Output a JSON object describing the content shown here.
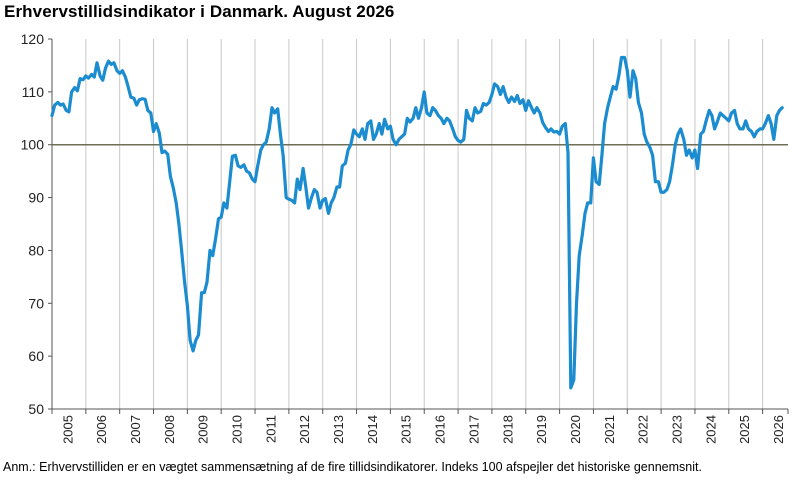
{
  "title": "Erhvervstillidsindikator i Danmark. August 2026",
  "note": "Anm.: Erhvervstilliden er en vægtet sammensætning af de fire tillidsindikatorer. Indeks 100 afspejler det historiske gennemsnit.",
  "colors": {
    "line": "#1b8ccf",
    "reference": "#6e6e57",
    "grid": "#c8c8c8",
    "axis": "#555555"
  },
  "chart_data": {
    "type": "line",
    "title": "Erhvervstillidsindikator i Danmark. August 2026",
    "xlabel": "",
    "ylabel": "",
    "ylim": [
      50,
      120
    ],
    "yticks": [
      50,
      60,
      70,
      80,
      90,
      100,
      110,
      120
    ],
    "xlim": [
      2005.0,
      2026.75
    ],
    "xticks": [
      "2005",
      "2006",
      "2007",
      "2008",
      "2009",
      "2010",
      "2011",
      "2012",
      "2013",
      "2014",
      "2015",
      "2016",
      "2017",
      "2018",
      "2019",
      "2020",
      "2021",
      "2022",
      "2023",
      "2024",
      "2025",
      "2026"
    ],
    "reference_line": 100,
    "grid": "vertical year separators",
    "legend": "none",
    "series": [
      {
        "x": [
          2005.0,
          2005.08,
          2005.17,
          2005.25,
          2005.33,
          2005.42,
          2005.5,
          2005.58,
          2005.67,
          2005.75,
          2005.83,
          2005.92,
          2006.0,
          2006.08,
          2006.17,
          2006.25,
          2006.33,
          2006.42,
          2006.5,
          2006.58,
          2006.67,
          2006.75,
          2006.83,
          2006.92,
          2007.0,
          2007.08,
          2007.17,
          2007.25,
          2007.33,
          2007.42,
          2007.5,
          2007.58,
          2007.67,
          2007.75,
          2007.83,
          2007.92,
          2008.0,
          2008.08,
          2008.17,
          2008.25,
          2008.33,
          2008.42,
          2008.5,
          2008.58,
          2008.67,
          2008.75,
          2008.83,
          2008.92,
          2009.0,
          2009.08,
          2009.17,
          2009.25,
          2009.33,
          2009.42,
          2009.5,
          2009.58,
          2009.67,
          2009.75,
          2009.83,
          2009.92,
          2010.0,
          2010.08,
          2010.17,
          2010.25,
          2010.33,
          2010.42,
          2010.5,
          2010.58,
          2010.67,
          2010.75,
          2010.83,
          2010.92,
          2011.0,
          2011.08,
          2011.17,
          2011.25,
          2011.33,
          2011.42,
          2011.5,
          2011.58,
          2011.67,
          2011.75,
          2011.83,
          2011.92,
          2012.0,
          2012.08,
          2012.17,
          2012.25,
          2012.33,
          2012.42,
          2012.5,
          2012.58,
          2012.67,
          2012.75,
          2012.83,
          2012.92,
          2013.0,
          2013.08,
          2013.17,
          2013.25,
          2013.33,
          2013.42,
          2013.5,
          2013.58,
          2013.67,
          2013.75,
          2013.83,
          2013.92,
          2014.0,
          2014.08,
          2014.17,
          2014.25,
          2014.33,
          2014.42,
          2014.5,
          2014.58,
          2014.67,
          2014.75,
          2014.83,
          2014.92,
          2015.0,
          2015.08,
          2015.17,
          2015.25,
          2015.33,
          2015.42,
          2015.5,
          2015.58,
          2015.67,
          2015.75,
          2015.83,
          2015.92,
          2016.0,
          2016.08,
          2016.17,
          2016.25,
          2016.33,
          2016.42,
          2016.5,
          2016.58,
          2016.67,
          2016.75,
          2016.83,
          2016.92,
          2017.0,
          2017.08,
          2017.17,
          2017.25,
          2017.33,
          2017.42,
          2017.5,
          2017.58,
          2017.67,
          2017.75,
          2017.83,
          2017.92,
          2018.0,
          2018.08,
          2018.17,
          2018.25,
          2018.33,
          2018.42,
          2018.5,
          2018.58,
          2018.67,
          2018.75,
          2018.83,
          2018.92,
          2019.0,
          2019.08,
          2019.17,
          2019.25,
          2019.33,
          2019.42,
          2019.5,
          2019.58,
          2019.67,
          2019.75,
          2019.83,
          2019.92,
          2020.0,
          2020.08,
          2020.17,
          2020.25,
          2020.33,
          2020.42,
          2020.5,
          2020.58,
          2020.67,
          2020.75,
          2020.83,
          2020.92,
          2021.0,
          2021.08,
          2021.17,
          2021.25,
          2021.33,
          2021.42,
          2021.5,
          2021.58,
          2021.67,
          2021.75,
          2021.83,
          2021.92,
          2022.0,
          2022.08,
          2022.17,
          2022.25,
          2022.33,
          2022.42,
          2022.5,
          2022.58,
          2022.67,
          2022.75,
          2022.83,
          2022.92,
          2023.0,
          2023.08,
          2023.17,
          2023.25,
          2023.33,
          2023.42,
          2023.5,
          2023.58,
          2023.67,
          2023.75,
          2023.83,
          2023.92,
          2024.0,
          2024.08,
          2024.17,
          2024.25,
          2024.33,
          2024.42,
          2024.5,
          2024.58,
          2024.67,
          2024.75,
          2024.83,
          2024.92,
          2025.0,
          2025.08,
          2025.17,
          2025.25,
          2025.33,
          2025.42,
          2025.5,
          2025.58,
          2025.67,
          2025.75,
          2025.83,
          2025.92,
          2026.0,
          2026.08,
          2026.17,
          2026.25,
          2026.33,
          2026.42,
          2026.5,
          2026.58
        ],
        "y": [
          105.5,
          107.5,
          108.0,
          107.5,
          107.7,
          106.5,
          106.2,
          110.0,
          110.8,
          110.2,
          112.5,
          112.3,
          113.0,
          112.6,
          113.3,
          112.8,
          115.5,
          113.0,
          112.2,
          114.5,
          115.8,
          115.2,
          115.5,
          114.0,
          113.5,
          114.0,
          112.8,
          111.0,
          109.0,
          108.8,
          107.5,
          108.5,
          108.7,
          108.6,
          106.5,
          106.0,
          102.5,
          104.0,
          102.2,
          98.5,
          98.8,
          98.2,
          94.0,
          92.0,
          89.0,
          85.0,
          80.0,
          74.0,
          69.5,
          63.0,
          61.0,
          63.0,
          64.0,
          72.0,
          72.0,
          74.0,
          80.0,
          79.0,
          82.0,
          86.0,
          86.3,
          89.0,
          88.0,
          93.0,
          97.8,
          98.0,
          96.0,
          95.7,
          96.2,
          95.0,
          94.7,
          93.5,
          93.0,
          96.0,
          99.0,
          100.0,
          100.5,
          103.0,
          107.0,
          106.0,
          106.8,
          102.0,
          98.0,
          90.0,
          89.7,
          89.5,
          89.0,
          93.5,
          91.5,
          95.5,
          92.0,
          88.0,
          90.0,
          91.5,
          91.0,
          88.0,
          89.5,
          89.8,
          87.0,
          89.0,
          90.0,
          92.0,
          92.0,
          96.0,
          96.5,
          99.0,
          100.0,
          102.8,
          102.0,
          101.5,
          103.0,
          101.0,
          104.0,
          104.5,
          101.0,
          102.0,
          104.0,
          102.0,
          104.8,
          103.0,
          103.5,
          101.0,
          100.0,
          101.0,
          101.5,
          102.0,
          105.0,
          104.3,
          105.0,
          107.0,
          105.0,
          107.0,
          110.0,
          106.0,
          105.5,
          107.0,
          106.5,
          105.5,
          105.0,
          104.0,
          105.0,
          104.5,
          103.2,
          101.5,
          100.8,
          100.5,
          101.0,
          106.5,
          105.0,
          104.5,
          107.0,
          106.0,
          106.3,
          107.8,
          107.5,
          108.0,
          109.5,
          111.5,
          111.0,
          109.5,
          111.0,
          109.0,
          108.0,
          109.0,
          108.2,
          109.3,
          107.8,
          108.5,
          106.5,
          108.3,
          107.0,
          106.0,
          107.0,
          106.0,
          104.2,
          103.3,
          102.5,
          103.0,
          102.4,
          102.5,
          102.0,
          103.5,
          104.0,
          98.5,
          54.0,
          55.5,
          70.0,
          79.0,
          83.0,
          87.0,
          89.0,
          89.0,
          97.5,
          93.0,
          92.5,
          98.0,
          104.0,
          107.0,
          109.0,
          111.0,
          110.5,
          113.0,
          116.5,
          116.5,
          114.0,
          109.0,
          114.0,
          112.5,
          108.0,
          106.0,
          102.0,
          100.5,
          99.5,
          98.0,
          93.0,
          93.0,
          91.0,
          91.0,
          91.5,
          93.0,
          96.0,
          100.0,
          102.0,
          103.0,
          101.0,
          98.0,
          99.0,
          97.5,
          99.0,
          95.5,
          102.0,
          102.5,
          104.5,
          106.5,
          105.5,
          103.0,
          104.5,
          106.0,
          105.5,
          105.0,
          104.5,
          106.0,
          106.5,
          104.0,
          103.0,
          103.0,
          104.5,
          103.0,
          102.5,
          101.5,
          102.5,
          103.0,
          103.0,
          104.0,
          105.5,
          104.0,
          101.0,
          105.5,
          106.5,
          107.0
        ]
      }
    ]
  }
}
